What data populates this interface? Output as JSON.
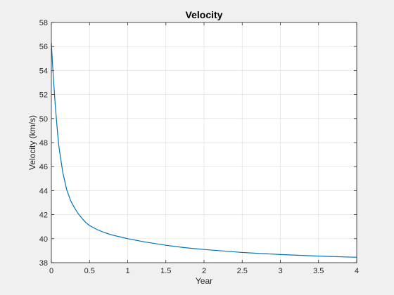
{
  "chart_data": {
    "type": "line",
    "title": "Velocity",
    "xlabel": "Year",
    "ylabel": "Velocity (km/s)",
    "xlim": [
      0,
      4
    ],
    "ylim": [
      38,
      58
    ],
    "grid": true,
    "x_ticks": [
      0,
      0.5,
      1,
      1.5,
      2,
      2.5,
      3,
      3.5,
      4
    ],
    "y_ticks": [
      38,
      40,
      42,
      44,
      46,
      48,
      50,
      52,
      54,
      56,
      58
    ],
    "series": [
      {
        "color": "#0072bd",
        "x": [
          0,
          0.02,
          0.05,
          0.08,
          0.1,
          0.15,
          0.2,
          0.25,
          0.3,
          0.35,
          0.4,
          0.45,
          0.5,
          0.6,
          0.7,
          0.8,
          0.9,
          1.0,
          1.25,
          1.5,
          1.75,
          2.0,
          2.5,
          3.0,
          3.5,
          4.0
        ],
        "y": [
          56.3,
          54.0,
          51.2,
          48.9,
          47.6,
          45.5,
          44.1,
          43.2,
          42.6,
          42.1,
          41.7,
          41.35,
          41.1,
          40.75,
          40.5,
          40.3,
          40.15,
          40.0,
          39.7,
          39.45,
          39.25,
          39.1,
          38.85,
          38.68,
          38.55,
          38.45
        ]
      }
    ]
  }
}
